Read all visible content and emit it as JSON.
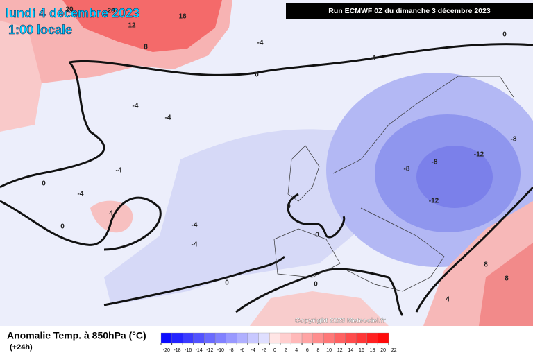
{
  "header": {
    "date": "lundi 4 décembre 2023",
    "time": "1:00 locale",
    "run": "Run ECMWF 0Z du dimanche 3 décembre 2023"
  },
  "copyright": "Copyright 2023 Meteociel.fr",
  "legend": {
    "title": "Anomalie Temp. à 850hPa (°C)",
    "lead": "(+24h)",
    "ticks": [
      -20,
      -18,
      -16,
      -14,
      -12,
      -10,
      -8,
      -6,
      -4,
      -2,
      0,
      2,
      4,
      6,
      8,
      10,
      12,
      14,
      16,
      18,
      20,
      22
    ]
  },
  "contour_labels": [
    20,
    20,
    16,
    12,
    8,
    -4,
    -4,
    0,
    0,
    -4,
    -4,
    -4,
    0,
    -4,
    4,
    0,
    -4,
    -4,
    0,
    -8,
    -8,
    -12,
    -8,
    -12,
    0,
    0,
    0,
    8,
    4,
    8
  ]
}
